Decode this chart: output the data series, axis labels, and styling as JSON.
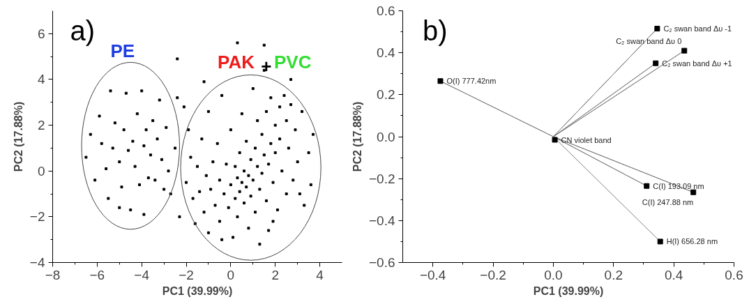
{
  "chart_data": [
    {
      "type": "scatter",
      "xlabel": "PC1 (39.99%)",
      "ylabel": "PC2 (17.88%)",
      "marker": "square",
      "grid": false,
      "annotations": [
        "a)",
        "PE",
        "PAK",
        "+",
        "PVC"
      ],
      "xlim": [
        -8,
        5
      ],
      "ylim": [
        -4,
        7
      ],
      "xticks": [
        -8,
        -6,
        -4,
        -2,
        0,
        2,
        4
      ],
      "yticks": [
        -4,
        -2,
        0,
        2,
        4,
        6
      ],
      "series": [
        {
          "color": "#000000",
          "x": [
            -6.5,
            -6.3,
            -6.1,
            -5.9,
            -5.8,
            -5.6,
            -5.5,
            -5.4,
            -5.3,
            -5.2,
            -5.0,
            -4.9,
            -4.8,
            -4.7,
            -4.6,
            -4.5,
            -4.4,
            -4.3,
            -4.2,
            -4.1,
            -4.0,
            -3.9,
            -3.8,
            -3.7,
            -3.6,
            -3.5,
            -3.4,
            -3.3,
            -3.2,
            -3.1,
            -3.0,
            -2.9,
            -2.8,
            -2.7,
            -2.5,
            -3.9,
            -5.0,
            -2.4,
            -2.4,
            -2.3,
            -2.1,
            -1.9,
            -1.2,
            -2.0,
            -1.8,
            -1.7,
            -1.6,
            -1.5,
            -1.4,
            -1.3,
            -1.2,
            -1.1,
            -1.0,
            -1.0,
            -0.9,
            -0.8,
            -0.7,
            -0.6,
            -0.5,
            -0.5,
            -0.4,
            -0.3,
            -0.2,
            -0.1,
            0.0,
            0.0,
            0.1,
            0.2,
            0.2,
            0.3,
            0.3,
            0.4,
            0.4,
            0.5,
            0.5,
            0.6,
            0.6,
            0.7,
            0.7,
            0.8,
            0.8,
            0.9,
            0.9,
            1.0,
            1.0,
            1.1,
            1.1,
            1.2,
            1.2,
            1.3,
            1.3,
            1.4,
            1.4,
            1.5,
            1.5,
            1.6,
            1.6,
            1.7,
            1.7,
            1.8,
            1.8,
            1.9,
            2.0,
            2.0,
            2.1,
            2.2,
            2.2,
            2.3,
            2.4,
            2.5,
            2.5,
            2.6,
            2.7,
            2.8,
            2.9,
            3.0,
            3.1,
            3.2,
            3.3,
            3.5,
            3.6,
            3.7,
            0.3,
            1.5,
            2.7,
            -0.4,
            1.9
          ],
          "values": [
            0.6,
            1.6,
            -0.4,
            2.4,
            1.2,
            0.1,
            -1.2,
            3.5,
            1.0,
            2.1,
            0.4,
            -0.7,
            1.8,
            3.4,
            0.9,
            -1.7,
            1.3,
            0.2,
            2.5,
            -0.6,
            3.5,
            1.1,
            1.8,
            -0.3,
            0.7,
            2.2,
            -0.4,
            1.4,
            3.1,
            0.5,
            -0.8,
            1.9,
            0.0,
            -1.0,
            1.0,
            -1.9,
            -1.6,
            4.9,
            3.2,
            -2.0,
            2.8,
            1.8,
            3.9,
            -0.5,
            0.6,
            -1.2,
            -2.3,
            0.2,
            -0.9,
            1.4,
            -1.8,
            -0.2,
            2.6,
            -2.7,
            -0.8,
            0.4,
            -1.5,
            1.2,
            -0.4,
            -2.2,
            3.3,
            -1.0,
            0.3,
            -1.6,
            -0.6,
            1.8,
            -2.9,
            -1.2,
            0.2,
            -0.3,
            -2.0,
            0.8,
            -0.9,
            -0.5,
            2.5,
            -1.4,
            0.0,
            -0.7,
            1.3,
            -2.5,
            -0.2,
            0.5,
            -1.1,
            3.6,
            -0.4,
            1.0,
            -1.8,
            0.2,
            2.2,
            -0.8,
            -3.2,
            1.6,
            -0.1,
            4.4,
            0.7,
            -1.3,
            2.6,
            0.3,
            -2.6,
            1.2,
            3.2,
            -0.5,
            2.0,
            0.8,
            -1.7,
            2.8,
            1.4,
            0.0,
            3.3,
            2.2,
            -1.0,
            1.0,
            2.9,
            -0.4,
            1.8,
            0.4,
            -1.0,
            2.6,
            -1.5,
            0.8,
            -0.6,
            1.6,
            5.6,
            5.5,
            4.0,
            -3.0,
            -2.2
          ]
        }
      ]
    },
    {
      "type": "scatter",
      "xlabel": "PC1 (39.99%)",
      "ylabel": "PC2 (17.88%)",
      "marker": "square",
      "grid": false,
      "xlim": [
        -0.5,
        0.6
      ],
      "ylim": [
        -0.6,
        0.6
      ],
      "xticks": [
        -0.4,
        -0.2,
        {
          "value": 0,
          "label": "0.0"
        },
        0.2,
        0.4,
        0.6
      ],
      "yticks": [
        -0.6,
        -0.4,
        -0.2,
        {
          "value": 0,
          "label": "0.0"
        },
        0.2,
        0.4,
        0.6
      ],
      "annotations": [
        "b)",
        {
          "text": "O(I) 777.42nm",
          "x": -0.375,
          "y": 0.265
        },
        {
          "text": "CN violet band",
          "x": 0.005,
          "y": -0.015
        },
        {
          "text": "C₂ swan band Δυ -1",
          "x": 0.345,
          "y": 0.515
        },
        {
          "text": "C₂ swan band Δυ 0",
          "x": 0.435,
          "y": 0.41
        },
        {
          "text": "C₂ swan band Δυ +1",
          "x": 0.34,
          "y": 0.35
        },
        {
          "text": "C(I) 193.09 nm",
          "x": 0.31,
          "y": -0.235
        },
        {
          "text": "C(I) 247.88 nm",
          "x": 0.465,
          "y": -0.265
        },
        {
          "text": "H(I) 656.28 nm",
          "x": 0.355,
          "y": -0.5
        }
      ],
      "series": [
        {
          "type": "line",
          "color": "#808080",
          "marker": "none",
          "x": [
            0,
            -0.375,
            0,
            0.345,
            0,
            0.435,
            0,
            0.34,
            0,
            0.31,
            0,
            0.465,
            0,
            0.355
          ],
          "values": [
            0,
            0.265,
            0,
            0.515,
            0,
            0.41,
            0,
            0.35,
            0,
            -0.235,
            0,
            -0.265,
            0,
            -0.5
          ]
        },
        {
          "type": "scatter",
          "color": "#000000",
          "x": [
            -0.375,
            0.005,
            0.345,
            0.435,
            0.34,
            0.31,
            0.465,
            0.355
          ],
          "values": [
            0.265,
            -0.015,
            0.515,
            0.41,
            0.35,
            -0.235,
            -0.265,
            -0.5
          ]
        }
      ]
    }
  ]
}
